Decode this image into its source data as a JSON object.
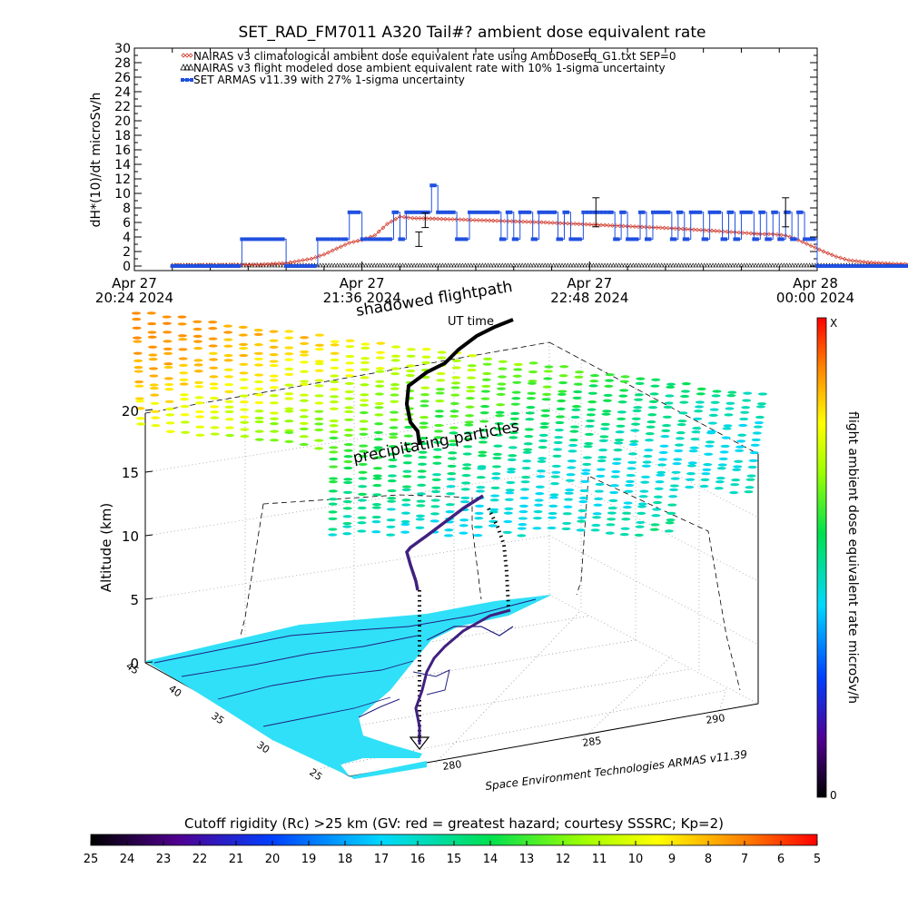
{
  "chart_data": [
    {
      "type": "line",
      "title": "SET_RAD_FM7011  A320 Tail#? ambient dose equivalent rate",
      "ylabel": "dH*(10)/dt microSv/h",
      "ylim": [
        0,
        30
      ],
      "yticks": [
        "0",
        "2",
        "4",
        "6",
        "8",
        "10",
        "12",
        "14",
        "16",
        "18",
        "20",
        "22",
        "24",
        "26",
        "28",
        "30"
      ],
      "x_tick_labels": [
        {
          "day": "Apr 27",
          "time": "20:24 2024"
        },
        {
          "day": "Apr 27",
          "time": "21:36 2024"
        },
        {
          "day": "Apr 27",
          "time": "22:48 2024"
        },
        {
          "day": "Apr 28",
          "time": "00:00 2024"
        }
      ],
      "xlim_minutes_after_2024_04_27_2024": [
        0,
        216
      ],
      "legend": [
        "NAIRAS v3 climatological ambient dose equivalent rate using AmbDoseEq_G1.txt SEP=0",
        "NAIRAS v3 flight modeled dose ambient equivalent rate with 10% 1-sigma uncertainty",
        "SET ARMAS v11.39 with 27% 1-sigma uncertainty"
      ],
      "legend_placement": "top-left",
      "series": [
        {
          "name": "NAIRAS v3 climatological ambient dose equivalent rate using AmbDoseEq_G1.txt SEP=0",
          "color": "#d03020",
          "x": [
            12,
            40,
            48,
            52,
            56,
            60,
            64,
            68,
            72,
            76,
            80,
            84,
            88,
            96,
            110,
            130,
            150,
            170,
            185,
            195,
            198,
            202,
            206,
            210,
            214,
            218,
            222,
            226,
            232,
            240,
            250,
            260,
            270,
            278
          ],
          "y": [
            0.1,
            0.2,
            0.4,
            0.7,
            1.0,
            1.6,
            2.4,
            3.2,
            3.6,
            4.2,
            5.8,
            6.8,
            6.6,
            6.5,
            6.3,
            6.0,
            5.6,
            5.2,
            4.8,
            4.5,
            4.4,
            4.4,
            4.2,
            3.6,
            2.8,
            2.0,
            1.3,
            0.8,
            0.5,
            0.3,
            0.2,
            0.15,
            0.1,
            0.1
          ]
        },
        {
          "name": "NAIRAS v3 flight modeled dose ambient equivalent rate with 10% 1-sigma uncertainty",
          "color": "#000000",
          "x": [
            12,
            278
          ],
          "y": [
            0,
            0
          ]
        },
        {
          "name": "SET ARMAS v11.39 with 27% 1-sigma uncertainty",
          "color": "#2050e0",
          "x": [
            12,
            32,
            34,
            46,
            48,
            56,
            58,
            66,
            68,
            70,
            72,
            80,
            82,
            84,
            86,
            88,
            92,
            94,
            96,
            100,
            102,
            104,
            106,
            114,
            116,
            118,
            120,
            122,
            124,
            126,
            128,
            132,
            134,
            136,
            138,
            140,
            142,
            150,
            152,
            154,
            156,
            160,
            162,
            164,
            166,
            170,
            172,
            174,
            176,
            180,
            182,
            184,
            186,
            188,
            190,
            192,
            194,
            196,
            198,
            200,
            202,
            204,
            206,
            208,
            210,
            212,
            214,
            216,
            218,
            220,
            224,
            228,
            232,
            250,
            278
          ],
          "y": [
            0,
            0,
            3.7,
            3.7,
            0,
            0,
            3.7,
            3.7,
            7.4,
            7.4,
            3.7,
            3.7,
            7.4,
            3.7,
            7.4,
            7.4,
            7.4,
            11.1,
            7.4,
            7.4,
            3.7,
            3.7,
            7.4,
            7.4,
            3.7,
            7.4,
            3.7,
            7.4,
            7.4,
            3.7,
            7.4,
            7.4,
            3.7,
            7.4,
            3.7,
            3.7,
            7.4,
            7.4,
            3.7,
            7.4,
            3.7,
            7.4,
            3.7,
            7.4,
            7.4,
            3.7,
            7.4,
            3.7,
            7.4,
            3.7,
            7.4,
            7.4,
            3.7,
            7.4,
            3.7,
            7.4,
            7.4,
            3.7,
            7.4,
            3.7,
            7.4,
            3.7,
            7.4,
            3.7,
            7.4,
            3.7,
            3.7,
            0,
            0,
            0,
            0,
            0,
            0,
            0,
            0
          ],
          "error_bars": [
            {
              "x": 90,
              "y": 3.7,
              "err": 1.0
            },
            {
              "x": 92,
              "y": 6.3,
              "err": 1.0
            },
            {
              "x": 146,
              "y": 7.4,
              "err": 2.0
            },
            {
              "x": 206,
              "y": 7.4,
              "err": 2.0
            }
          ]
        }
      ]
    },
    {
      "type": "scatter",
      "title": "shadowed flightpath",
      "zlabel": "Altitude (km)",
      "zticks": [
        "0",
        "5",
        "10",
        "15",
        "20"
      ],
      "lat_ticks": [
        "45",
        "40",
        "35",
        "30",
        "25"
      ],
      "lon_ticks": [
        "280",
        "285",
        "290"
      ],
      "annotations": [
        "UT time",
        "precipitating particles",
        "Space Environment Technologies ARMAS v11.39"
      ],
      "colorbar_right": {
        "label": "flight ambient dose equivalent rate microSv/h",
        "top": "X",
        "bottom": "0"
      },
      "colorbar_bottom": {
        "label": "Cutoff rigidity (Rc) >25 km (GV: red = greatest hazard; courtesy SSSRC; Kp=2)",
        "ticks": [
          "25",
          "24",
          "23",
          "22",
          "21",
          "20",
          "19",
          "18",
          "17",
          "16",
          "15",
          "14",
          "13",
          "12",
          "11",
          "10",
          "9",
          "8",
          "7",
          "6",
          "5"
        ]
      },
      "grid": true
    }
  ],
  "colors": {
    "grid": "#d8d8d8",
    "ground": "#30e0f8",
    "coast": "#202080",
    "path": "#402080"
  }
}
